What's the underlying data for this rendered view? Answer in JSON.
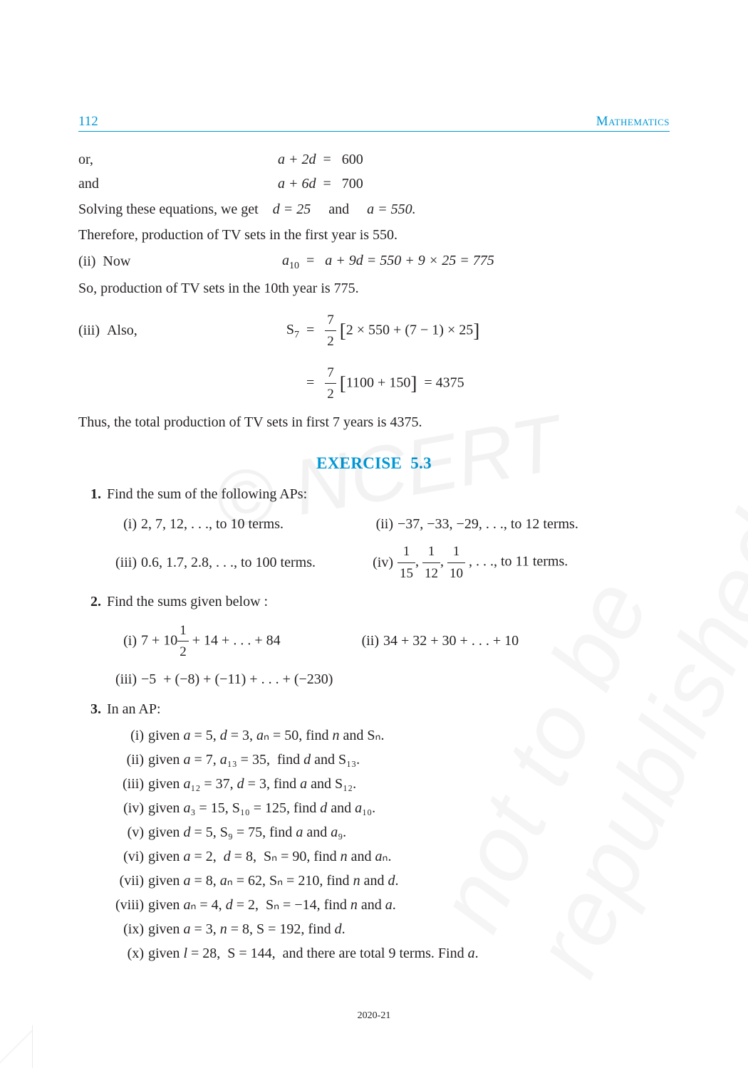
{
  "header": {
    "page_number": "112",
    "subject": "Mathematics"
  },
  "equations": {
    "line1_label": "or,",
    "line1_lhs": "a + 2d",
    "line1_rhs": "600",
    "line2_label": "and",
    "line2_lhs": "a + 6d",
    "line2_rhs": "700",
    "solving_text": "Solving these equations, we get",
    "d_val": "d = 25",
    "and_word": "and",
    "a_val": "a = 550.",
    "therefore_line": "Therefore, production of TV sets in the first year is 550.",
    "line_ii_label": "(ii)  Now",
    "line_ii_lhs": "a",
    "line_ii_sub": "10",
    "line_ii_rhs": "a + 9d = 550 + 9 × 25 = 775",
    "so_line": "So, production of TV sets in the 10th year is 775.",
    "line_iii_label": "(iii)  Also,",
    "s7_lhs": "S",
    "s7_sub": "7",
    "s7_frac_num": "7",
    "s7_frac_den": "2",
    "s7_bracket1": "2 × 550 + (7 − 1) × 25",
    "s7_line2_frac_num": "7",
    "s7_line2_frac_den": "2",
    "s7_bracket2": "1100 + 150",
    "s7_result": "= 4375",
    "thus_line": "Thus, the total production of TV sets in first 7 years is 4375."
  },
  "exercise": {
    "title": "EXERCISE  5.3",
    "q1": {
      "num": "1.",
      "text": "Find the sum of the following APs:",
      "items": [
        {
          "roman": "(i)",
          "text": "2, 7, 12, . . ., to 10 terms."
        },
        {
          "roman": "(ii)",
          "text": "−37, −33, −29, . . ., to 12 terms."
        },
        {
          "roman": "(iii)",
          "text": "0.6, 1.7, 2.8, . . ., to 100 terms."
        },
        {
          "roman": "(iv)",
          "tail": ", . . ., to 11 terms."
        }
      ],
      "iv_fracs": [
        {
          "num": "1",
          "den": "15"
        },
        {
          "num": "1",
          "den": "12"
        },
        {
          "num": "1",
          "den": "10"
        }
      ]
    },
    "q2": {
      "num": "2.",
      "text": "Find the sums given below :",
      "i_roman": "(i)",
      "i_before": "7 + 10",
      "i_frac_num": "1",
      "i_frac_den": "2",
      "i_after": " + 14 + . . . + 84",
      "ii_roman": "(ii)",
      "ii_text": "34 + 32 + 30 + . . . + 10",
      "iii_roman": "(iii)",
      "iii_text": "−5  + (−8) + (−11) + . . . + (−230)"
    },
    "q3": {
      "num": "3.",
      "text": "In an AP:",
      "items": [
        {
          "roman": "(i)",
          "text": "given a = 5, d = 3, aₙ = 50, find n and Sₙ."
        },
        {
          "roman": "(ii)",
          "text": "given a = 7, a₁₃ = 35,  find d and S₁₃."
        },
        {
          "roman": "(iii)",
          "text": "given a₁₂ = 37, d = 3, find a and S₁₂."
        },
        {
          "roman": "(iv)",
          "text": "given a₃ = 15, S₁₀ = 125, find d and a₁₀."
        },
        {
          "roman": "(v)",
          "text": "given d = 5, S₉ = 75, find a and a₉."
        },
        {
          "roman": "(vi)",
          "text": "given a = 2,  d = 8,  Sₙ = 90, find n and aₙ."
        },
        {
          "roman": "(vii)",
          "text": "given a = 8, aₙ = 62, Sₙ = 210, find n and d."
        },
        {
          "roman": "(viii)",
          "text": "given aₙ = 4, d = 2,  Sₙ = −14, find n and a."
        },
        {
          "roman": "(ix)",
          "text": "given a = 3, n = 8, S = 192, find d."
        },
        {
          "roman": "(x)",
          "text": "given l = 28,  S = 144,  and there are total 9 terms. Find a."
        }
      ]
    }
  },
  "footer": "2020-21",
  "watermarks": {
    "w1": "© NCERT",
    "w2": "not to be republished"
  },
  "colors": {
    "accent": "#0097d6",
    "text": "#231f20",
    "background": "#ffffff"
  }
}
